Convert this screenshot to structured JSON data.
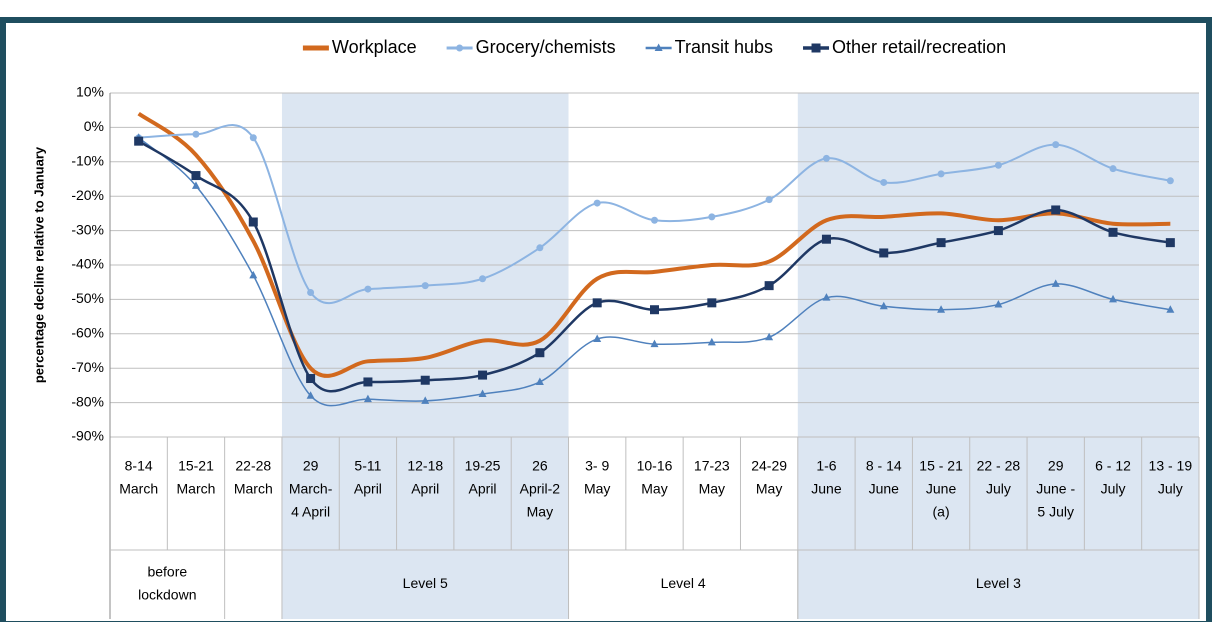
{
  "chart_data": {
    "type": "line",
    "y_label": "percentage decline relative to January",
    "categories": [
      [
        "8-14",
        "March"
      ],
      [
        "15-21",
        "March"
      ],
      [
        "22-28",
        "March"
      ],
      [
        "29",
        "March-",
        "4 April"
      ],
      [
        "5-11",
        "April"
      ],
      [
        "12-18",
        "April"
      ],
      [
        "19-25",
        "April"
      ],
      [
        "26",
        "April-2",
        "May"
      ],
      [
        "3- 9",
        "May"
      ],
      [
        "10-16",
        "May"
      ],
      [
        "17-23",
        "May"
      ],
      [
        "24-29",
        "May"
      ],
      [
        "1-6",
        "June"
      ],
      [
        "8 - 14",
        "June"
      ],
      [
        "15 - 21",
        "June",
        "(a)"
      ],
      [
        "22 - 28",
        "July"
      ],
      [
        "29",
        "June -",
        "5 July"
      ],
      [
        "6 - 12",
        "July"
      ],
      [
        "13 - 19",
        "July"
      ]
    ],
    "groups": [
      {
        "label": [
          "before",
          "lockdown"
        ],
        "span": [
          0,
          1
        ],
        "shaded": false
      },
      {
        "label": [
          "Level 5"
        ],
        "span": [
          3,
          7
        ],
        "shaded": true
      },
      {
        "label": [
          "Level 4"
        ],
        "span": [
          8,
          11
        ],
        "shaded": false
      },
      {
        "label": [
          "Level 3"
        ],
        "span": [
          12,
          18
        ],
        "shaded": true
      }
    ],
    "shade_color": "#dce6f2",
    "series": [
      {
        "name": "Workplace",
        "color": "#d2691e",
        "width": 4,
        "marker": "none",
        "values": [
          4,
          -8,
          -33,
          -70,
          -68,
          -67,
          -62,
          -62,
          -44,
          -42,
          -40,
          -39,
          -27,
          -26,
          -25,
          -27,
          -25,
          -28,
          -28
        ]
      },
      {
        "name": "Grocery/chemists",
        "color": "#8db4e2",
        "width": 2,
        "marker": "circle",
        "values": [
          -3,
          -2,
          -3,
          -48,
          -47,
          -46,
          -44,
          -35,
          -22,
          -27,
          -26,
          -21,
          -9,
          -16,
          -13.5,
          -11,
          -5,
          -12,
          -15.5
        ]
      },
      {
        "name": "Transit hubs",
        "color": "#4f81bd",
        "width": 1.5,
        "marker": "triangle",
        "values": [
          -3,
          -17,
          -43,
          -78,
          -79,
          -79.5,
          -77.5,
          -74,
          -61.5,
          -63,
          -62.5,
          -61,
          -49.5,
          -52,
          -53,
          -51.5,
          -45.5,
          -50,
          -53
        ]
      },
      {
        "name": "Other retail/recreation",
        "color": "#1f3864",
        "width": 2.5,
        "marker": "square",
        "values": [
          -4,
          -14,
          -27.5,
          -73,
          -74,
          -73.5,
          -72,
          -65.5,
          -51,
          -53,
          -51,
          -46,
          -32.5,
          -36.5,
          -33.5,
          -30,
          -24,
          -30.5,
          -33.5
        ]
      }
    ],
    "ylim": [
      -90,
      10
    ],
    "yticks": [
      {
        "value": -90,
        "label": "-90%"
      },
      {
        "value": -80,
        "label": "-80%"
      },
      {
        "value": -70,
        "label": "-70%"
      },
      {
        "value": -60,
        "label": "-60%"
      },
      {
        "value": -50,
        "label": "-50%"
      },
      {
        "value": -40,
        "label": "-40%"
      },
      {
        "value": -30,
        "label": "-30%"
      },
      {
        "value": -20,
        "label": "-20%"
      },
      {
        "value": -10,
        "label": "-10%"
      },
      {
        "value": 0,
        "label": "0%"
      },
      {
        "value": 10,
        "label": "10%"
      }
    ],
    "grid": true
  }
}
